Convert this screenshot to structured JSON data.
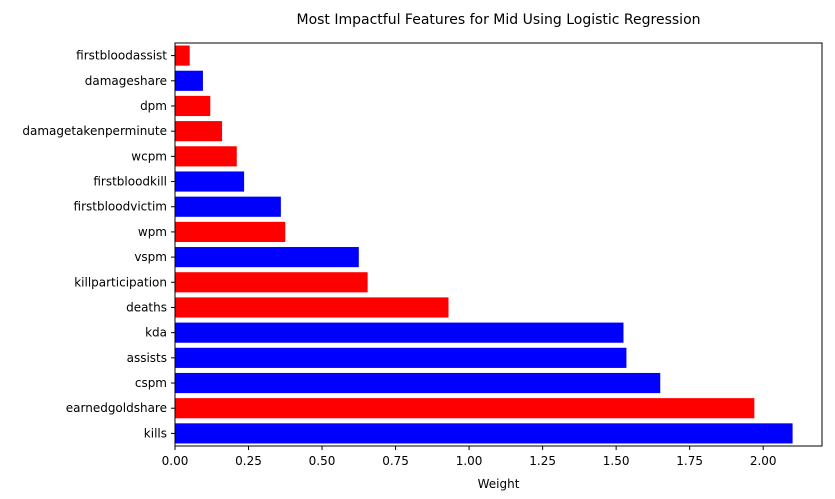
{
  "chart_data": {
    "type": "bar",
    "orientation": "horizontal",
    "title": "Most Impactful Features for Mid Using Logistic Regression",
    "xlabel": "Weight",
    "ylabel": "",
    "xlim": [
      0,
      2.2
    ],
    "xticks": [
      "0.00",
      "0.25",
      "0.50",
      "0.75",
      "1.00",
      "1.25",
      "1.50",
      "1.75",
      "2.00"
    ],
    "grid": false,
    "categories": [
      "kills",
      "earnedgoldshare",
      "cspm",
      "assists",
      "kda",
      "deaths",
      "killparticipation",
      "vspm",
      "wpm",
      "firstbloodvictim",
      "firstbloodkill",
      "wcpm",
      "damagetakenperminute",
      "dpm",
      "damageshare",
      "firstbloodassist"
    ],
    "values": [
      2.1,
      1.97,
      1.65,
      1.535,
      1.525,
      0.93,
      0.655,
      0.625,
      0.375,
      0.36,
      0.235,
      0.21,
      0.16,
      0.12,
      0.095,
      0.05
    ],
    "bar_colors": [
      "#0000ff",
      "#ff0000",
      "#0000ff",
      "#0000ff",
      "#0000ff",
      "#ff0000",
      "#ff0000",
      "#0000ff",
      "#ff0000",
      "#0000ff",
      "#0000ff",
      "#ff0000",
      "#ff0000",
      "#ff0000",
      "#0000ff",
      "#ff0000"
    ]
  }
}
